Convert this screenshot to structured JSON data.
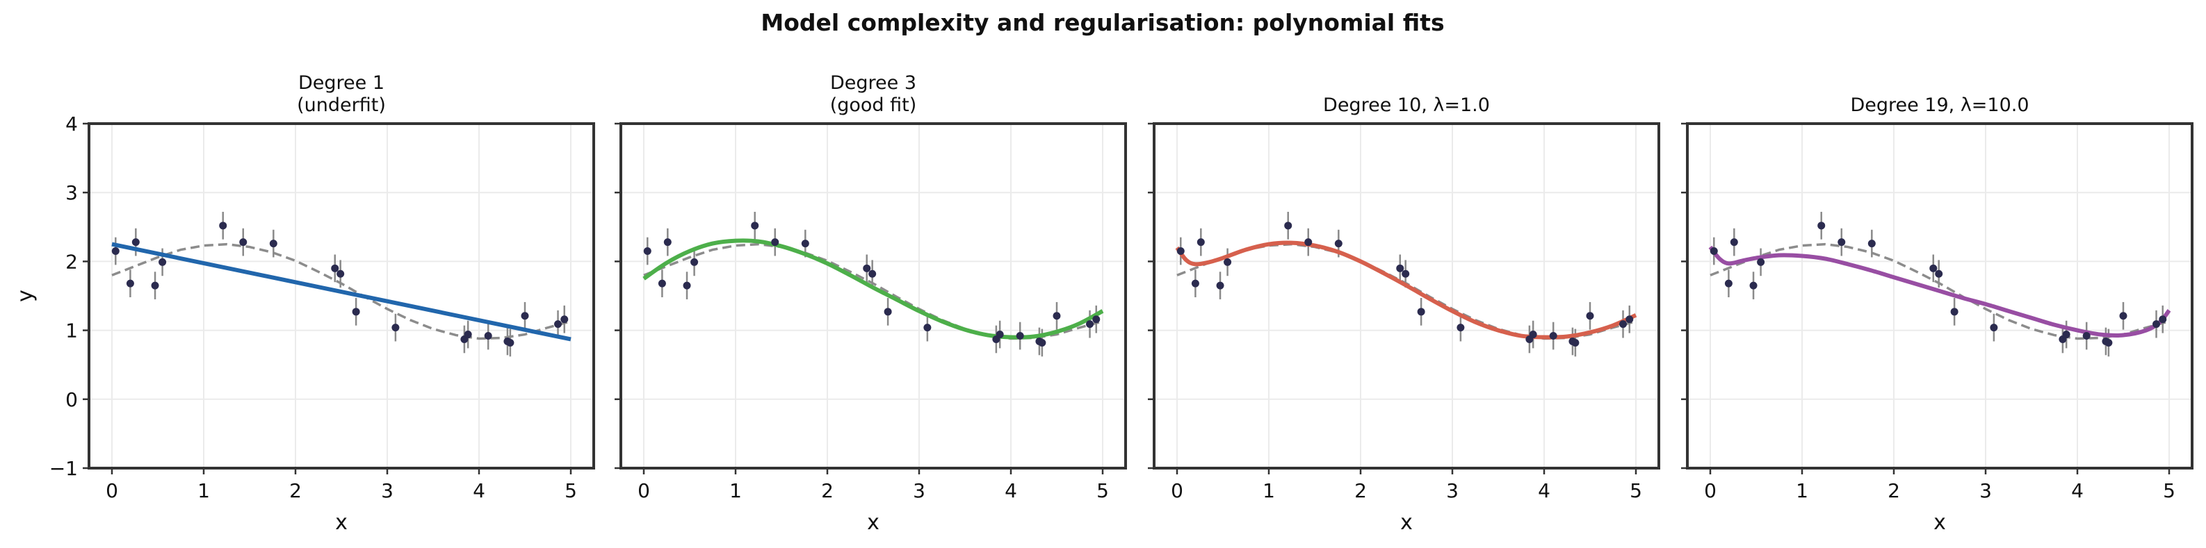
{
  "chart_data": {
    "type": "scatter",
    "suptitle": "Model complexity and regularisation: polynomial fits",
    "xlabel": "x",
    "ylabel": "y",
    "xlim": [
      -0.25,
      5.25
    ],
    "ylim": [
      -1,
      4
    ],
    "xticks": [
      "0",
      "1",
      "2",
      "3",
      "4",
      "5"
    ],
    "yticks": [
      "−1",
      "0",
      "1",
      "2",
      "3",
      "4"
    ],
    "grid": true,
    "colors": {
      "points": "#2b2b4f",
      "errorbar": "#8a8a8a",
      "true_function": "#8c8c8c"
    },
    "observations": {
      "x": [
        0.04,
        0.2,
        0.26,
        0.47,
        0.55,
        1.21,
        1.43,
        1.76,
        2.43,
        2.49,
        2.66,
        3.09,
        3.84,
        3.88,
        4.1,
        4.31,
        4.34,
        4.5,
        4.86,
        4.93
      ],
      "y": [
        2.15,
        1.68,
        2.28,
        1.65,
        1.99,
        2.52,
        2.28,
        2.26,
        1.9,
        1.82,
        1.27,
        1.04,
        0.87,
        0.94,
        0.92,
        0.84,
        0.82,
        1.21,
        1.09,
        1.16
      ],
      "error": 0.2
    },
    "true_function": {
      "x": [
        0,
        0.25,
        0.5,
        0.75,
        1.0,
        1.25,
        1.5,
        1.75,
        2.0,
        2.25,
        2.5,
        2.75,
        3.0,
        3.25,
        3.5,
        3.75,
        4.0,
        4.25,
        4.5,
        4.75,
        5.0
      ],
      "y": [
        1.8,
        1.93,
        2.06,
        2.17,
        2.23,
        2.25,
        2.21,
        2.13,
        2.01,
        1.85,
        1.68,
        1.49,
        1.31,
        1.15,
        1.02,
        0.93,
        0.88,
        0.89,
        0.94,
        1.04,
        1.13
      ]
    },
    "panels": [
      {
        "title_line1": "Degree 1",
        "title_line2": "(underfit)",
        "color": "#2166ac",
        "fit": {
          "x": [
            0,
            5
          ],
          "y": [
            2.25,
            0.87
          ]
        }
      },
      {
        "title_line1": "Degree 3",
        "title_line2": "(good fit)",
        "color": "#4daf4a",
        "fit": {
          "x": [
            0,
            0.25,
            0.5,
            0.75,
            1.0,
            1.25,
            1.5,
            1.75,
            2.0,
            2.25,
            2.5,
            2.75,
            3.0,
            3.25,
            3.5,
            3.75,
            4.0,
            4.25,
            4.5,
            4.75,
            5.0
          ],
          "y": [
            1.75,
            1.98,
            2.15,
            2.26,
            2.3,
            2.29,
            2.22,
            2.11,
            1.97,
            1.8,
            1.62,
            1.45,
            1.28,
            1.13,
            1.01,
            0.93,
            0.9,
            0.91,
            0.98,
            1.1,
            1.28
          ]
        }
      },
      {
        "title_line1": "Degree 10, λ=1.0",
        "title_line2": "",
        "color": "#d6604d",
        "fit": {
          "x": [
            0,
            0.1,
            0.2,
            0.35,
            0.5,
            0.75,
            1.0,
            1.25,
            1.5,
            1.75,
            2.0,
            2.25,
            2.5,
            2.75,
            3.0,
            3.25,
            3.5,
            3.75,
            4.0,
            4.25,
            4.5,
            4.75,
            5.0
          ],
          "y": [
            2.2,
            2.02,
            1.96,
            1.99,
            2.05,
            2.17,
            2.25,
            2.27,
            2.23,
            2.14,
            2.0,
            1.83,
            1.65,
            1.46,
            1.28,
            1.12,
            1.0,
            0.92,
            0.9,
            0.91,
            0.97,
            1.07,
            1.22
          ]
        }
      },
      {
        "title_line1": "Degree 19, λ=10.0",
        "title_line2": "",
        "color": "#984ea3",
        "fit": {
          "x": [
            0,
            0.1,
            0.2,
            0.35,
            0.5,
            0.75,
            1.0,
            1.25,
            1.5,
            1.75,
            2.0,
            2.25,
            2.5,
            2.75,
            3.0,
            3.25,
            3.5,
            3.75,
            4.0,
            4.25,
            4.5,
            4.75,
            4.9,
            5.0
          ],
          "y": [
            2.21,
            2.04,
            1.97,
            2.01,
            2.05,
            2.09,
            2.08,
            2.04,
            1.96,
            1.87,
            1.77,
            1.67,
            1.57,
            1.47,
            1.38,
            1.28,
            1.18,
            1.08,
            1.0,
            0.94,
            0.93,
            1.0,
            1.12,
            1.29
          ]
        }
      }
    ]
  }
}
